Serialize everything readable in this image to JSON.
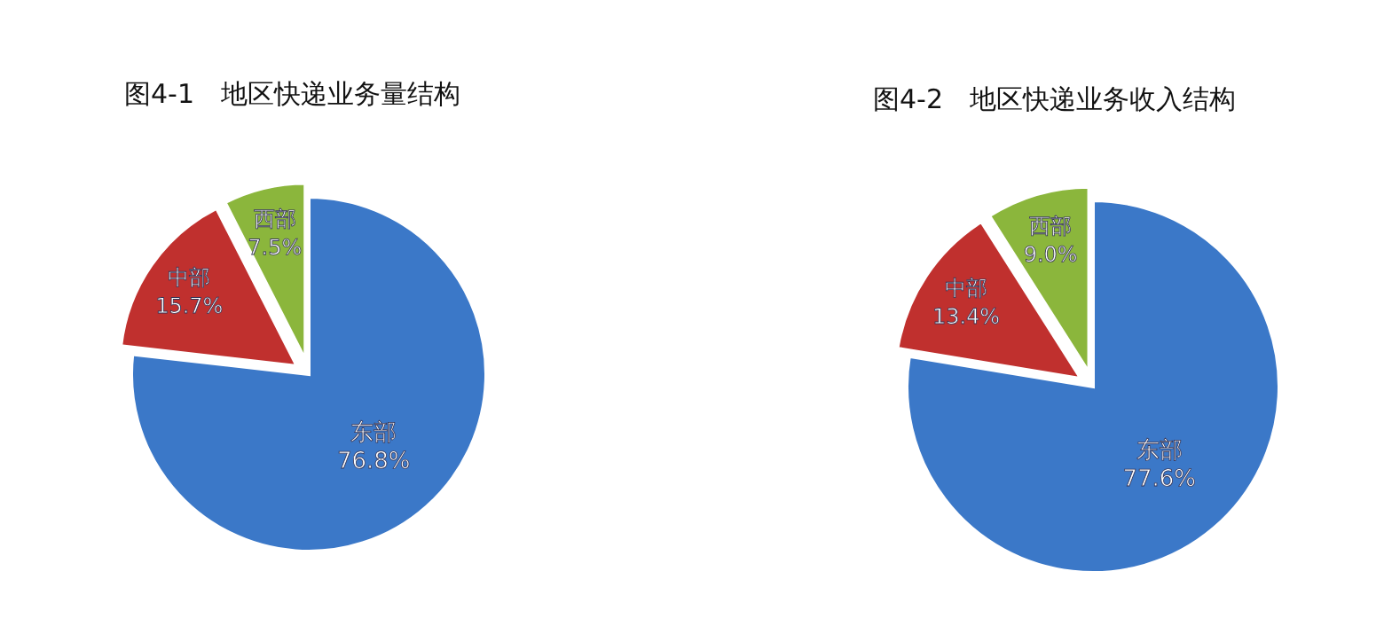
{
  "chart_data": [
    {
      "type": "pie",
      "title": "图4-1　地区快递业务量结构",
      "categories": [
        "东部",
        "中部",
        "西部"
      ],
      "values": [
        76.8,
        15.7,
        7.5
      ],
      "value_labels": [
        "76.8%",
        "15.7%",
        "7.5%"
      ],
      "colors": [
        "#3b78c8",
        "#c0302e",
        "#8bb63c"
      ]
    },
    {
      "type": "pie",
      "title": "图4-2　地区快递业务收入结构",
      "categories": [
        "东部",
        "中部",
        "西部"
      ],
      "values": [
        77.6,
        13.4,
        9.0
      ],
      "value_labels": [
        "77.6%",
        "13.4%",
        "9.0%"
      ],
      "colors": [
        "#3b78c8",
        "#c0302e",
        "#8bb63c"
      ]
    }
  ]
}
